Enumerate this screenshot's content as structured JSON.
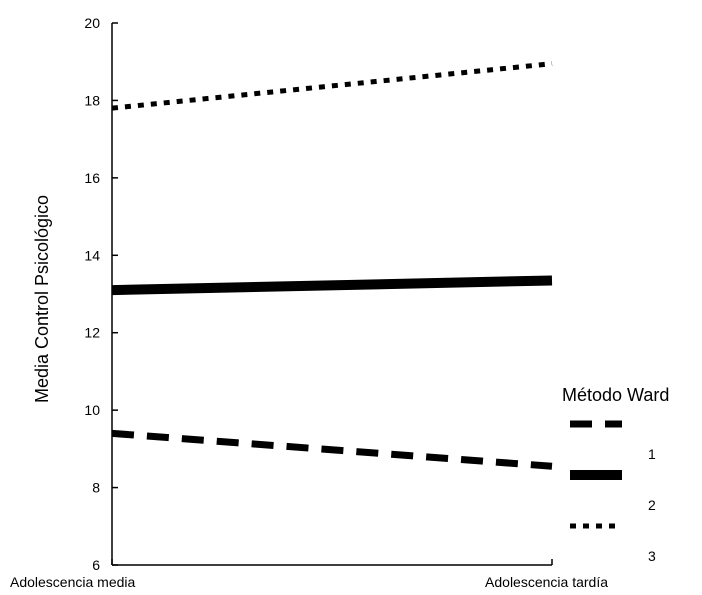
{
  "chart_data": {
    "type": "line",
    "title": "",
    "xlabel": "",
    "ylabel": "Media Control Psicológico",
    "categories": [
      "Adolescencia media",
      "Adolescencia tardía"
    ],
    "ylim": [
      6,
      20
    ],
    "yticks": [
      6,
      8,
      10,
      12,
      14,
      16,
      18,
      20
    ],
    "grid": false,
    "legend": {
      "title": "Método Ward",
      "position": "right"
    },
    "series": [
      {
        "name": "1",
        "values": [
          9.4,
          8.55
        ],
        "style": "dashed",
        "color": "#000000"
      },
      {
        "name": "2",
        "values": [
          13.1,
          13.35
        ],
        "style": "solid",
        "color": "#000000"
      },
      {
        "name": "3",
        "values": [
          17.8,
          18.95
        ],
        "style": "dotted",
        "color": "#000000"
      }
    ]
  }
}
